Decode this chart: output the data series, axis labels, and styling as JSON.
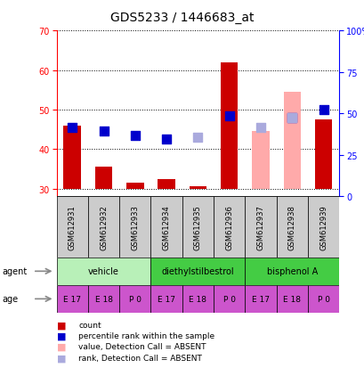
{
  "title": "GDS5233 / 1446683_at",
  "samples": [
    "GSM612931",
    "GSM612932",
    "GSM612933",
    "GSM612934",
    "GSM612935",
    "GSM612936",
    "GSM612937",
    "GSM612938",
    "GSM612939"
  ],
  "red_bars": [
    46.0,
    35.5,
    31.5,
    32.5,
    30.5,
    62.0,
    null,
    null,
    47.5
  ],
  "red_bars_bottom": [
    30,
    30,
    30,
    30,
    30,
    30,
    null,
    null,
    30
  ],
  "pink_bars": [
    null,
    null,
    null,
    null,
    null,
    null,
    44.5,
    54.5,
    null
  ],
  "pink_bars_bottom": [
    null,
    null,
    null,
    null,
    null,
    null,
    30,
    30,
    null
  ],
  "blue_squares": [
    45.5,
    44.5,
    43.5,
    42.5,
    null,
    48.5,
    null,
    48.0,
    50.0
  ],
  "light_blue_squares": [
    null,
    null,
    null,
    null,
    43.0,
    null,
    45.5,
    48.0,
    null
  ],
  "agent_info": [
    [
      0,
      2,
      "vehicle",
      "#b8f0b8"
    ],
    [
      3,
      5,
      "diethylstilbestrol",
      "#44cc44"
    ],
    [
      6,
      8,
      "bisphenol A",
      "#44cc44"
    ]
  ],
  "age_labels": [
    "E 17",
    "E 18",
    "P 0",
    "E 17",
    "E 18",
    "P 0",
    "E 17",
    "E 18",
    "P 0"
  ],
  "age_color": "#cc55cc",
  "ylim_left": [
    28,
    70
  ],
  "ylim_right": [
    0,
    100
  ],
  "yticks_left": [
    30,
    40,
    50,
    60,
    70
  ],
  "yticks_right": [
    0,
    25,
    50,
    75,
    100
  ],
  "ytick_labels_right": [
    "0",
    "25",
    "50",
    "75",
    "100%"
  ],
  "red_bar_color": "#cc0000",
  "pink_bar_color": "#ffaaaa",
  "blue_sq_color": "#0000cc",
  "light_blue_sq_color": "#aaaadd",
  "grey_box_color": "#cccccc",
  "legend_items": [
    [
      "#cc0000",
      "count"
    ],
    [
      "#0000cc",
      "percentile rank within the sample"
    ],
    [
      "#ffaaaa",
      "value, Detection Call = ABSENT"
    ],
    [
      "#aaaadd",
      "rank, Detection Call = ABSENT"
    ]
  ]
}
